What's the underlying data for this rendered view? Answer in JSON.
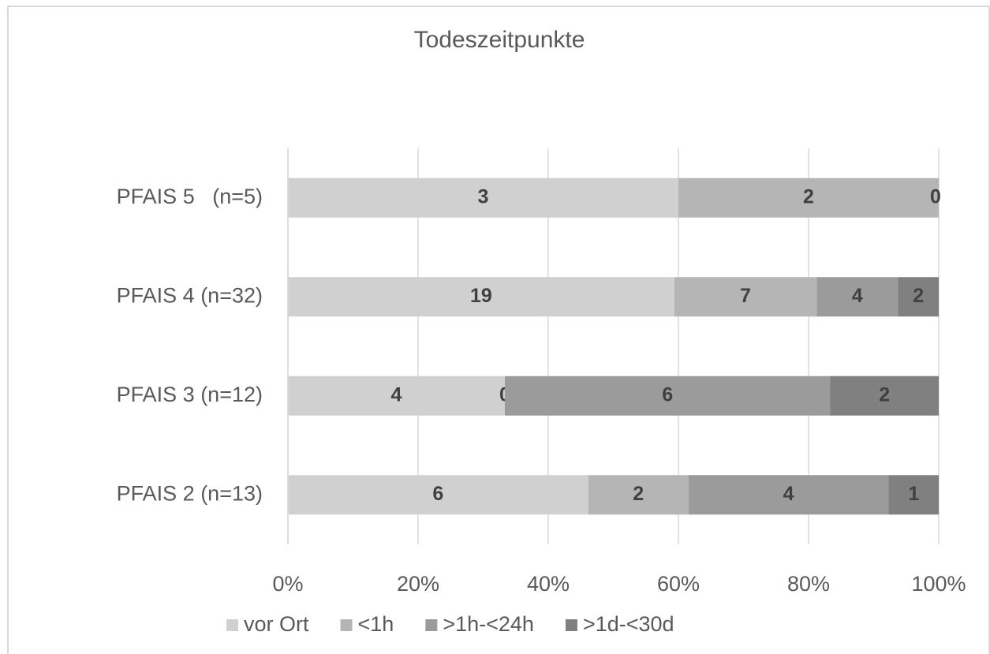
{
  "chart_data": {
    "type": "bar",
    "orientation": "horizontal",
    "stack": "percent",
    "title": "Todeszeitpunkte",
    "categories": [
      "PFAIS 5   (n=5)",
      "PFAIS 4 (n=32)",
      "PFAIS 3 (n=12)",
      "PFAIS 2 (n=13)"
    ],
    "series": [
      {
        "name": "vor Ort",
        "color": "#d0d0d0",
        "values": [
          3,
          19,
          4,
          6
        ]
      },
      {
        "name": "<1h",
        "color": "#b5b5b5",
        "values": [
          2,
          7,
          0,
          2
        ]
      },
      {
        "name": ">1h-<24h",
        "color": "#9b9b9b",
        "values": [
          0,
          4,
          6,
          4
        ]
      },
      {
        "name": ">1d-<30d",
        "color": "#808080",
        "values": [
          null,
          2,
          2,
          1
        ]
      }
    ],
    "xlim": [
      0,
      100
    ],
    "xticks": [
      {
        "value": 0,
        "label": "0%"
      },
      {
        "value": 20,
        "label": "20%"
      },
      {
        "value": 40,
        "label": "40%"
      },
      {
        "value": 60,
        "label": "60%"
      },
      {
        "value": 80,
        "label": "80%"
      },
      {
        "value": 100,
        "label": "100%"
      }
    ],
    "grid": true,
    "legend": "bottom"
  }
}
